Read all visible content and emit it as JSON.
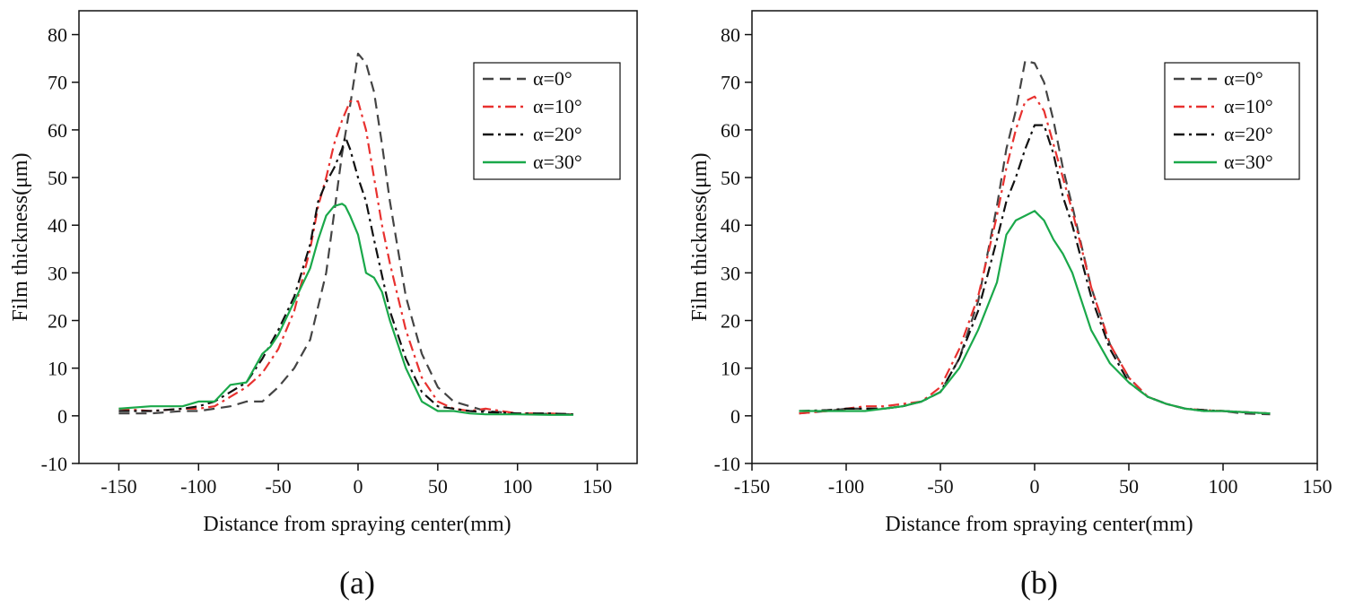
{
  "chart_data": [
    {
      "type": "line",
      "panel_label": "(a)",
      "xlabel": "Distance from spraying center(mm)",
      "ylabel": "Film thickness(μm)",
      "xlim": [
        -175,
        175
      ],
      "ylim": [
        -10,
        85
      ],
      "xticks": [
        -150,
        -100,
        -50,
        0,
        50,
        100,
        150
      ],
      "yticks": [
        -10,
        0,
        10,
        20,
        30,
        40,
        50,
        60,
        70,
        80
      ],
      "legend_position": "top-right",
      "series": [
        {
          "name": "α=0°",
          "color": "#444444",
          "dash": "dash",
          "x": [
            -150,
            -130,
            -110,
            -100,
            -90,
            -80,
            -70,
            -60,
            -50,
            -40,
            -30,
            -20,
            -10,
            -5,
            0,
            5,
            10,
            15,
            20,
            30,
            40,
            50,
            60,
            70,
            80,
            100,
            120,
            135
          ],
          "y": [
            0.5,
            0.5,
            1,
            1,
            1.5,
            2,
            3,
            3,
            6,
            10,
            16,
            30,
            55,
            65,
            76,
            74,
            68,
            57,
            45,
            25,
            13,
            6,
            3,
            2,
            1,
            0.5,
            0.4,
            0.3
          ]
        },
        {
          "name": "α=10°",
          "color": "#e8312f",
          "dash": "dashdot",
          "x": [
            -150,
            -130,
            -110,
            -100,
            -90,
            -80,
            -70,
            -60,
            -50,
            -40,
            -30,
            -25,
            -20,
            -15,
            -10,
            -5,
            0,
            5,
            10,
            15,
            20,
            30,
            40,
            50,
            60,
            70,
            80,
            100,
            120,
            135
          ],
          "y": [
            1.5,
            1,
            1.5,
            1.5,
            2,
            4,
            6,
            9,
            14,
            22,
            35,
            44,
            50,
            57,
            62,
            66,
            66,
            60,
            50,
            40,
            32,
            18,
            8,
            3,
            1.5,
            1,
            1.5,
            0.5,
            0.5,
            0.3
          ]
        },
        {
          "name": "α=20°",
          "color": "#111111",
          "dash": "dashdot",
          "x": [
            -150,
            -130,
            -110,
            -100,
            -90,
            -80,
            -70,
            -60,
            -50,
            -40,
            -30,
            -25,
            -20,
            -15,
            -10,
            -8,
            -5,
            0,
            5,
            10,
            20,
            30,
            40,
            50,
            60,
            70,
            80,
            100,
            120,
            135
          ],
          "y": [
            1,
            1,
            1.5,
            2,
            3,
            5,
            7,
            12,
            18,
            25,
            36,
            45,
            49,
            52,
            56,
            58.5,
            56,
            50,
            45,
            37,
            22,
            12,
            5,
            2,
            1.5,
            1,
            0.8,
            0.5,
            0.5,
            0.3
          ]
        },
        {
          "name": "α=30°",
          "color": "#1aa84a",
          "dash": "solid",
          "x": [
            -150,
            -130,
            -120,
            -110,
            -100,
            -90,
            -80,
            -70,
            -60,
            -55,
            -50,
            -40,
            -30,
            -25,
            -20,
            -15,
            -10,
            -8,
            -5,
            0,
            5,
            10,
            15,
            20,
            30,
            40,
            50,
            60,
            70,
            80,
            100,
            120,
            135
          ],
          "y": [
            1.5,
            2,
            2,
            2,
            3,
            3,
            6.5,
            7,
            13,
            14.5,
            17,
            24,
            31,
            37,
            42,
            44,
            44.5,
            44,
            42,
            38,
            30,
            29,
            26,
            20,
            10,
            3,
            1,
            1,
            0.5,
            0.3,
            0.3,
            0.2,
            0.2
          ]
        }
      ]
    },
    {
      "type": "line",
      "panel_label": "(b)",
      "xlabel": "Distance from spraying center(mm)",
      "ylabel": "Film thickness(μm)",
      "xlim": [
        -150,
        150
      ],
      "ylim": [
        -10,
        85
      ],
      "xticks": [
        -150,
        -100,
        -50,
        0,
        50,
        100,
        150
      ],
      "yticks": [
        -10,
        0,
        10,
        20,
        30,
        40,
        50,
        60,
        70,
        80
      ],
      "legend_position": "top-right",
      "series": [
        {
          "name": "α=0°",
          "color": "#444444",
          "dash": "dash",
          "x": [
            -125,
            -110,
            -100,
            -90,
            -80,
            -70,
            -60,
            -50,
            -40,
            -30,
            -20,
            -15,
            -10,
            -5,
            0,
            5,
            10,
            15,
            20,
            30,
            40,
            50,
            60,
            70,
            80,
            90,
            100,
            110,
            125
          ],
          "y": [
            0.5,
            1,
            1.5,
            1.5,
            1.5,
            2,
            3,
            5,
            12,
            24,
            44,
            56,
            64,
            74.5,
            74,
            70,
            62,
            52,
            44,
            27,
            15,
            8,
            4,
            2.5,
            1.5,
            1,
            1,
            0.5,
            0.3
          ]
        },
        {
          "name": "α=10°",
          "color": "#e8312f",
          "dash": "dashdot",
          "x": [
            -125,
            -110,
            -100,
            -90,
            -80,
            -70,
            -60,
            -50,
            -40,
            -30,
            -20,
            -15,
            -10,
            -5,
            0,
            5,
            10,
            15,
            20,
            30,
            40,
            50,
            60,
            70,
            80,
            90,
            100,
            110,
            125
          ],
          "y": [
            0.5,
            1,
            1.5,
            2,
            2,
            2.5,
            3,
            6,
            14,
            25,
            42,
            52,
            60,
            66,
            67,
            64,
            57,
            50,
            43,
            27,
            15,
            8,
            4,
            2.5,
            1.5,
            1.2,
            1,
            0.8,
            0.5
          ]
        },
        {
          "name": "α=20°",
          "color": "#111111",
          "dash": "dashdot",
          "x": [
            -125,
            -110,
            -100,
            -90,
            -80,
            -70,
            -60,
            -50,
            -40,
            -30,
            -20,
            -15,
            -10,
            -5,
            0,
            5,
            10,
            15,
            20,
            30,
            40,
            50,
            60,
            70,
            80,
            90,
            100,
            110,
            125
          ],
          "y": [
            1,
            1.2,
            1.5,
            1.5,
            1.5,
            2,
            3,
            5,
            12,
            22,
            37,
            45,
            50,
            56,
            61,
            61,
            55,
            46,
            40,
            25,
            14,
            7,
            4,
            2.5,
            1.5,
            1.2,
            1,
            0.8,
            0.5
          ]
        },
        {
          "name": "α=30°",
          "color": "#1aa84a",
          "dash": "solid",
          "x": [
            -125,
            -110,
            -100,
            -90,
            -80,
            -70,
            -60,
            -50,
            -40,
            -30,
            -20,
            -15,
            -10,
            -5,
            0,
            5,
            10,
            15,
            20,
            30,
            40,
            50,
            60,
            70,
            80,
            90,
            100,
            110,
            125
          ],
          "y": [
            1,
            1,
            1,
            1,
            1.5,
            2,
            3,
            5,
            10,
            18,
            28,
            38,
            41,
            42,
            43,
            41,
            37,
            34,
            30,
            18,
            11,
            7,
            4,
            2.5,
            1.5,
            1,
            1,
            0.8,
            0.5
          ]
        }
      ]
    }
  ]
}
